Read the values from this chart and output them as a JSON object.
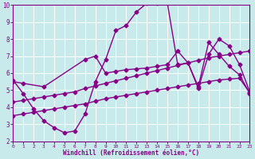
{
  "xlabel": "Windchill (Refroidissement éolien,°C)",
  "xlim": [
    0,
    23
  ],
  "ylim": [
    2,
    10
  ],
  "xticks": [
    0,
    1,
    2,
    3,
    4,
    5,
    6,
    7,
    8,
    9,
    10,
    11,
    12,
    13,
    14,
    15,
    16,
    17,
    18,
    19,
    20,
    21,
    22,
    23
  ],
  "yticks": [
    2,
    3,
    4,
    5,
    6,
    7,
    8,
    9,
    10
  ],
  "background_color": "#c8eaea",
  "grid_color": "#ffffff",
  "line_color": "#880088",
  "line1_x": [
    0,
    1,
    2,
    3,
    4,
    5,
    6,
    7,
    8,
    9,
    10,
    11,
    12,
    13,
    14,
    15,
    16,
    17,
    18,
    19,
    20,
    21,
    22,
    23
  ],
  "line1_y": [
    5.6,
    4.8,
    3.9,
    3.2,
    2.8,
    2.5,
    2.6,
    3.6,
    5.5,
    6.8,
    8.5,
    8.8,
    9.6,
    10.1,
    10.1,
    10.1,
    6.5,
    6.6,
    5.2,
    7.8,
    7.1,
    6.4,
    5.9,
    4.8
  ],
  "line2_x": [
    0,
    1,
    3,
    7,
    8,
    9,
    10,
    11,
    12,
    13,
    14,
    15,
    16,
    17,
    18,
    19,
    20,
    21,
    22,
    23
  ],
  "line2_y": [
    5.5,
    5.4,
    5.2,
    6.8,
    7.0,
    6.0,
    6.1,
    6.2,
    6.25,
    6.3,
    6.4,
    6.5,
    7.3,
    6.6,
    5.1,
    7.1,
    8.0,
    7.6,
    6.5,
    4.9
  ],
  "line3_x": [
    0,
    1,
    2,
    3,
    4,
    5,
    6,
    7,
    8,
    9,
    10,
    11,
    12,
    13,
    14,
    15,
    16,
    17,
    18,
    19,
    20,
    21,
    22,
    23
  ],
  "line3_y": [
    4.3,
    4.4,
    4.5,
    4.6,
    4.7,
    4.8,
    4.9,
    5.1,
    5.25,
    5.4,
    5.55,
    5.7,
    5.85,
    6.0,
    6.15,
    6.3,
    6.45,
    6.6,
    6.75,
    6.9,
    7.0,
    7.1,
    7.2,
    7.3
  ],
  "line4_x": [
    0,
    1,
    2,
    3,
    4,
    5,
    6,
    7,
    8,
    9,
    10,
    11,
    12,
    13,
    14,
    15,
    16,
    17,
    18,
    19,
    20,
    21,
    22,
    23
  ],
  "line4_y": [
    3.5,
    3.6,
    3.7,
    3.8,
    3.9,
    4.0,
    4.1,
    4.2,
    4.35,
    4.5,
    4.6,
    4.7,
    4.8,
    4.9,
    5.0,
    5.1,
    5.2,
    5.3,
    5.4,
    5.5,
    5.6,
    5.65,
    5.7,
    4.85
  ],
  "marker": "D",
  "markersize": 2.5,
  "linewidth": 1.0
}
